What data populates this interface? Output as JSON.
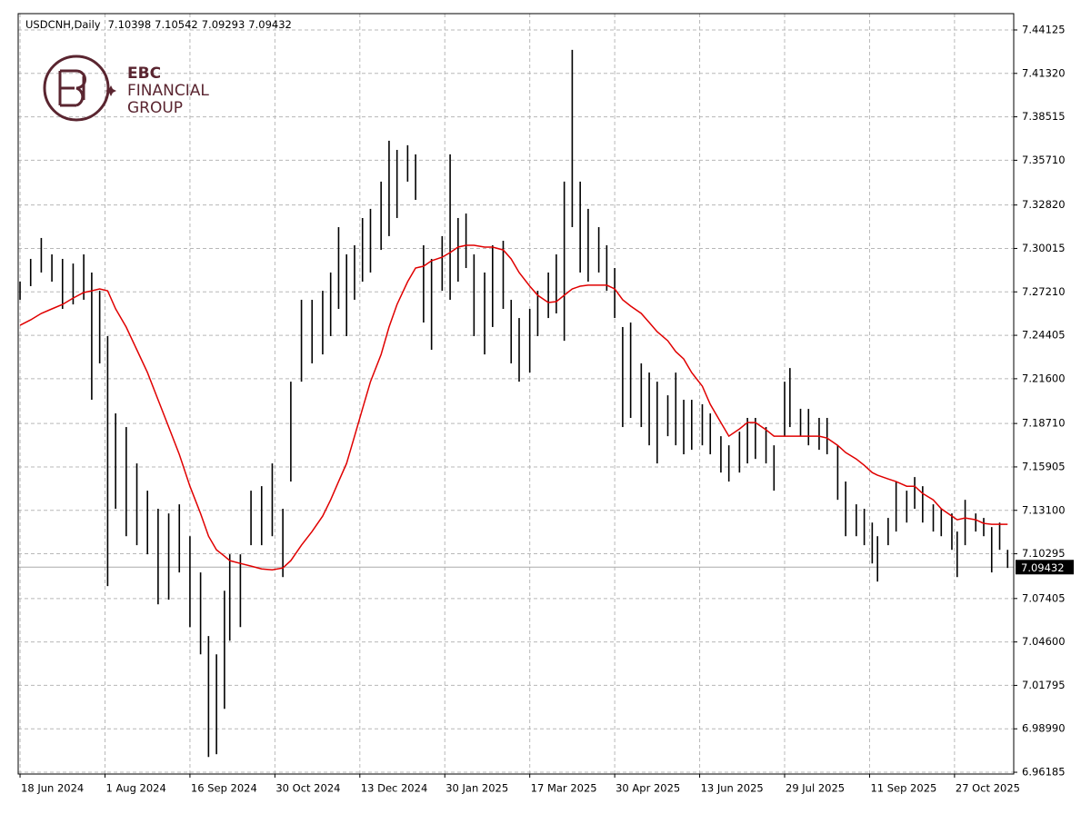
{
  "chart_data": {
    "type": "ohlc",
    "symbol": "USDCNH,Daily",
    "ohlc_header": [
      7.10398,
      7.10542,
      7.09293,
      7.09432
    ],
    "logo": [
      "EBC",
      "FINANCIAL",
      "GROUP"
    ],
    "bar_color": "#000000",
    "last_price": 7.09432,
    "x": [
      0,
      4,
      8,
      12,
      16,
      20,
      24,
      27,
      30,
      33,
      36,
      40,
      44,
      48,
      52,
      56,
      60,
      64,
      68,
      71,
      74,
      77,
      79,
      83,
      87,
      91,
      95,
      99,
      102,
      106,
      110,
      114,
      117,
      120,
      123,
      126,
      129,
      132,
      136,
      139,
      142,
      146,
      149,
      152,
      155,
      159,
      162,
      165,
      168,
      171,
      175,
      178,
      182,
      185,
      188,
      192,
      195,
      199,
      202,
      205,
      208,
      211,
      214,
      218,
      221,
      224,
      227,
      230,
      234,
      237,
      240,
      244,
      247,
      250,
      253,
      257,
      260,
      264,
      267,
      271,
      274,
      277,
      281,
      284,
      288,
      290,
      294,
      297,
      301,
      304,
      308,
      311,
      315,
      318,
      321,
      323,
      327,
      330,
      334,
      337,
      340,
      344,
      347,
      351,
      353,
      356,
      360,
      363,
      366,
      369,
      372
    ],
    "high": [
      7.2787,
      7.2934,
      7.3069,
      7.2963,
      7.2934,
      7.2904,
      7.2963,
      7.2846,
      7.2728,
      7.2435,
      7.1936,
      7.1848,
      7.1613,
      7.1437,
      7.132,
      7.129,
      7.1349,
      7.1143,
      7.0909,
      7.0498,
      7.038,
      7.0791,
      7.1026,
      7.1026,
      7.1437,
      7.1466,
      7.1613,
      7.132,
      7.2141,
      7.267,
      7.267,
      7.2728,
      7.2846,
      7.3139,
      7.2963,
      7.3022,
      7.3198,
      7.3257,
      7.3433,
      7.3697,
      7.3638,
      7.3668,
      7.3609,
      7.3022,
      7.2934,
      7.3081,
      7.3609,
      7.3198,
      7.3227,
      7.2963,
      7.2846,
      7.3022,
      7.3051,
      7.267,
      7.2552,
      7.2611,
      7.2728,
      7.2846,
      7.2963,
      7.3433,
      7.4284,
      7.3433,
      7.3257,
      7.3139,
      7.3022,
      7.2875,
      7.2494,
      7.2523,
      7.2259,
      7.22,
      7.2141,
      7.2053,
      7.22,
      7.2024,
      7.2024,
      7.1995,
      7.1936,
      7.1789,
      7.173,
      7.1818,
      7.1907,
      7.1907,
      7.1848,
      7.173,
      7.2141,
      7.2229,
      7.1966,
      7.1965,
      7.1907,
      7.1907,
      7.173,
      7.1496,
      7.1349,
      7.132,
      7.1231,
      7.1143,
      7.1261,
      7.1496,
      7.1437,
      7.1525,
      7.1466,
      7.1349,
      7.132,
      7.129,
      7.1173,
      7.1378,
      7.129,
      7.1261,
      7.1202,
      7.1231,
      7.1055
    ],
    "low": [
      7.267,
      7.2758,
      7.2846,
      7.2787,
      7.2611,
      7.264,
      7.267,
      7.2024,
      7.2259,
      7.0821,
      7.132,
      7.1143,
      7.1085,
      7.1026,
      7.0703,
      7.0733,
      7.0909,
      7.0556,
      7.038,
      6.9717,
      6.9735,
      7.0028,
      7.0468,
      7.0556,
      7.1085,
      7.1085,
      7.1143,
      7.0879,
      7.1496,
      7.2141,
      7.2259,
      7.2317,
      7.2435,
      7.2611,
      7.2435,
      7.267,
      7.2787,
      7.2846,
      7.2992,
      7.3081,
      7.3198,
      7.3433,
      7.3315,
      7.2523,
      7.2347,
      7.2728,
      7.267,
      7.2787,
      7.2875,
      7.2435,
      7.2317,
      7.2494,
      7.2611,
      7.2259,
      7.2141,
      7.22,
      7.2435,
      7.2552,
      7.2582,
      7.2405,
      7.3139,
      7.2846,
      7.2787,
      7.2846,
      7.2728,
      7.2552,
      7.1848,
      7.1907,
      7.1848,
      7.173,
      7.1613,
      7.1789,
      7.173,
      7.1672,
      7.1701,
      7.173,
      7.1672,
      7.1554,
      7.1496,
      7.1554,
      7.1613,
      7.1642,
      7.1613,
      7.1437,
      7.1789,
      7.1848,
      7.1789,
      7.173,
      7.1701,
      7.1672,
      7.1378,
      7.1143,
      7.1143,
      7.1085,
      7.0967,
      7.085,
      7.1085,
      7.1173,
      7.1231,
      7.132,
      7.1231,
      7.1173,
      7.1143,
      7.1055,
      7.0879,
      7.1085,
      7.1173,
      7.1143,
      7.0909,
      7.1055,
      7.0938
    ],
    "ma": {
      "color": "#e00000",
      "values": [
        7.2505,
        7.254,
        7.2582,
        7.2611,
        7.264,
        7.2681,
        7.2717,
        7.2728,
        7.274,
        7.2728,
        7.2611,
        7.2494,
        7.2347,
        7.22,
        7.2024,
        7.1848,
        7.1672,
        7.1466,
        7.129,
        7.1143,
        7.1055,
        7.1014,
        7.0985,
        7.0967,
        7.095,
        7.0932,
        7.0926,
        7.0938,
        7.0985,
        7.1085,
        7.1173,
        7.1273,
        7.1378,
        7.1496,
        7.1613,
        7.1789,
        7.1965,
        7.2141,
        7.2317,
        7.2494,
        7.264,
        7.2787,
        7.2875,
        7.2887,
        7.2922,
        7.2945,
        7.2975,
        7.301,
        7.3022,
        7.3022,
        7.301,
        7.301,
        7.2992,
        7.2934,
        7.2846,
        7.2758,
        7.2699,
        7.2652,
        7.2658,
        7.2699,
        7.274,
        7.2758,
        7.2764,
        7.2764,
        7.2764,
        7.274,
        7.267,
        7.2629,
        7.2582,
        7.2523,
        7.2464,
        7.2405,
        7.2335,
        7.2288,
        7.22,
        7.2112,
        7.1995,
        7.1877,
        7.1789,
        7.1836,
        7.1877,
        7.1877,
        7.183,
        7.1789,
        7.1789,
        7.1789,
        7.1789,
        7.1789,
        7.1789,
        7.1777,
        7.173,
        7.1683,
        7.1642,
        7.1601,
        7.1554,
        7.1537,
        7.1513,
        7.1496,
        7.1466,
        7.1466,
        7.1419,
        7.1378,
        7.132,
        7.1273,
        7.1249,
        7.1261,
        7.1249,
        7.1226,
        7.122,
        7.122,
        7.122
      ]
    },
    "xlim": [
      -0.7,
      374.3
    ],
    "ylim": [
      6.9607,
      7.4518
    ],
    "xticks": [
      {
        "value": 0,
        "label": "18 Jun 2024"
      },
      {
        "value": 32,
        "label": "1 Aug 2024"
      },
      {
        "value": 64,
        "label": "16 Sep 2024"
      },
      {
        "value": 96,
        "label": "30 Oct 2024"
      },
      {
        "value": 128,
        "label": "13 Dec 2024"
      },
      {
        "value": 160,
        "label": "30 Jan 2025"
      },
      {
        "value": 192,
        "label": "17 Mar 2025"
      },
      {
        "value": 224,
        "label": "30 Apr 2025"
      },
      {
        "value": 256,
        "label": "13 Jun 2025"
      },
      {
        "value": 288,
        "label": "29 Jul 2025"
      },
      {
        "value": 320,
        "label": "11 Sep 2025"
      },
      {
        "value": 352,
        "label": "27 Oct 2025"
      }
    ],
    "yticks": [
      7.44125,
      {
        "value": 7.4132,
        "label": "7.41320"
      },
      7.38515,
      {
        "value": 7.3571,
        "label": "7.35710"
      },
      {
        "value": 7.3282,
        "label": "7.32820"
      },
      7.30015,
      {
        "value": 7.2721,
        "label": "7.27210"
      },
      7.24405,
      {
        "value": 7.216,
        "label": "7.21600"
      },
      {
        "value": 7.1871,
        "label": "7.18710"
      },
      7.15905,
      {
        "value": 7.131,
        "label": "7.13100"
      },
      7.10295,
      7.07405,
      {
        "value": 7.046,
        "label": "7.04600"
      },
      7.01795,
      {
        "value": 6.9899,
        "label": "6.98990"
      },
      6.96185
    ],
    "grid": true
  }
}
